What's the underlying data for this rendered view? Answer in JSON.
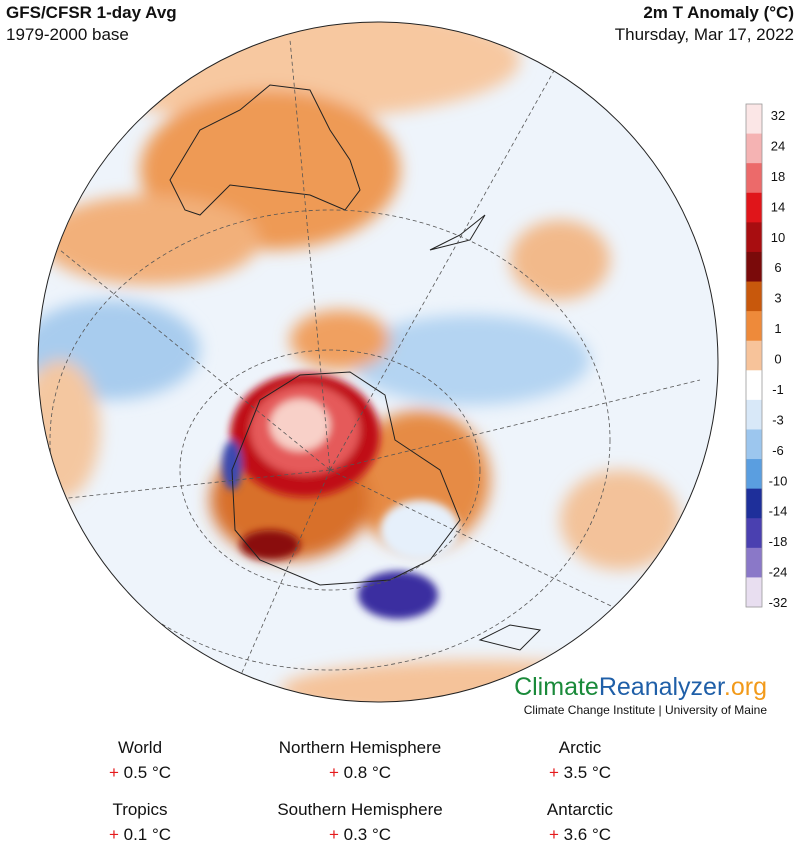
{
  "header": {
    "title": "GFS/CFSR 1-day Avg",
    "base": "1979-2000 base",
    "variable": "2m T Anomaly (°C)",
    "date": "Thursday, Mar 17, 2022"
  },
  "colorbar": {
    "labels": [
      32,
      24,
      18,
      14,
      10,
      6,
      3,
      1,
      0,
      -1,
      -3,
      -6,
      -10,
      -14,
      -18,
      -24,
      -32
    ],
    "colors": [
      "#fbe6e6",
      "#f5b3b3",
      "#ec6a6a",
      "#e0151a",
      "#a80d10",
      "#7a0a0a",
      "#c8580c",
      "#ee8a3a",
      "#f7c39a",
      "#ffffff",
      "#d8e8f8",
      "#9cc6ee",
      "#5a9ee0",
      "#1e2f9a",
      "#4a40b0",
      "#8a78c8",
      "#e8def0"
    ]
  },
  "branding": {
    "logo_1": "Climate",
    "logo_2": "Reanalyzer",
    "logo_3": ".org",
    "subtitle": "Climate Change Institute | University of Maine"
  },
  "stats": [
    {
      "region": "World",
      "sign": "+",
      "value": "0.5 °C"
    },
    {
      "region": "Northern Hemisphere",
      "sign": "+",
      "value": "0.8 °C"
    },
    {
      "region": "Arctic",
      "sign": "+",
      "value": "3.5 °C"
    },
    {
      "region": "Tropics",
      "sign": "+",
      "value": "0.1 °C"
    },
    {
      "region": "Southern Hemisphere",
      "sign": "+",
      "value": "0.3 °C"
    },
    {
      "region": "Antarctic",
      "sign": "+",
      "value": "3.6 °C"
    }
  ]
}
